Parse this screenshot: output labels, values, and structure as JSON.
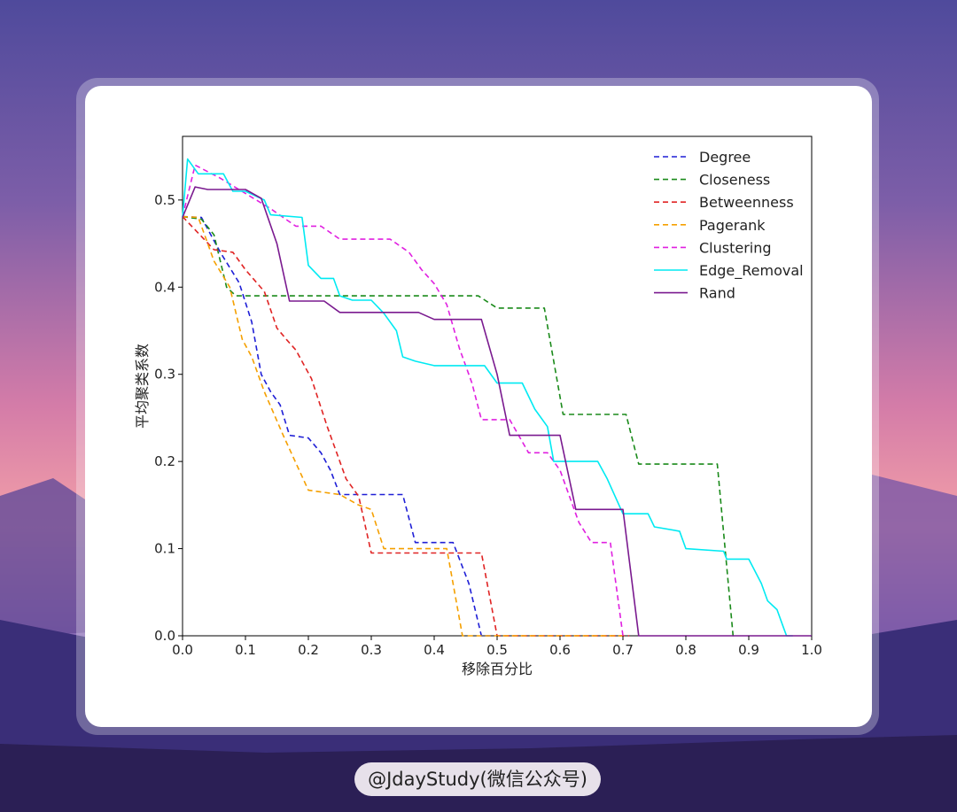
{
  "watermark": "@JdayStudy(微信公众号)",
  "chart_data": {
    "type": "line",
    "title": "",
    "xlabel": "移除百分比",
    "ylabel": "平均聚类系数",
    "xlim": [
      0.0,
      1.0
    ],
    "ylim": [
      0.0,
      0.573
    ],
    "xticks": [
      "0.0",
      "0.1",
      "0.2",
      "0.3",
      "0.4",
      "0.5",
      "0.6",
      "0.7",
      "0.8",
      "0.9",
      "1.0"
    ],
    "yticks": [
      "0.0",
      "0.1",
      "0.2",
      "0.3",
      "0.4",
      "0.5"
    ],
    "grid": false,
    "legend": "top-right",
    "series": [
      {
        "name": "Degree",
        "color": "#1f1fd6",
        "dash": "dashed",
        "points": [
          [
            0.0,
            0.481
          ],
          [
            0.03,
            0.48
          ],
          [
            0.06,
            0.44
          ],
          [
            0.09,
            0.405
          ],
          [
            0.11,
            0.36
          ],
          [
            0.125,
            0.3
          ],
          [
            0.14,
            0.28
          ],
          [
            0.155,
            0.265
          ],
          [
            0.17,
            0.23
          ],
          [
            0.2,
            0.227
          ],
          [
            0.22,
            0.21
          ],
          [
            0.235,
            0.19
          ],
          [
            0.25,
            0.162
          ],
          [
            0.35,
            0.162
          ],
          [
            0.37,
            0.107
          ],
          [
            0.43,
            0.107
          ],
          [
            0.455,
            0.06
          ],
          [
            0.475,
            0.0
          ],
          [
            0.49,
            0.0
          ]
        ]
      },
      {
        "name": "Closeness",
        "color": "#1a8a1a",
        "dash": "dashed",
        "points": [
          [
            0.0,
            0.481
          ],
          [
            0.03,
            0.478
          ],
          [
            0.05,
            0.46
          ],
          [
            0.07,
            0.4
          ],
          [
            0.085,
            0.39
          ],
          [
            0.47,
            0.39
          ],
          [
            0.5,
            0.376
          ],
          [
            0.575,
            0.376
          ],
          [
            0.605,
            0.254
          ],
          [
            0.705,
            0.254
          ],
          [
            0.725,
            0.197
          ],
          [
            0.85,
            0.197
          ],
          [
            0.875,
            0.0
          ],
          [
            0.88,
            0.0
          ]
        ]
      },
      {
        "name": "Betweenness",
        "color": "#e02424",
        "dash": "dashed",
        "points": [
          [
            0.0,
            0.481
          ],
          [
            0.05,
            0.443
          ],
          [
            0.08,
            0.44
          ],
          [
            0.1,
            0.42
          ],
          [
            0.13,
            0.395
          ],
          [
            0.15,
            0.353
          ],
          [
            0.165,
            0.34
          ],
          [
            0.18,
            0.328
          ],
          [
            0.205,
            0.295
          ],
          [
            0.23,
            0.24
          ],
          [
            0.26,
            0.18
          ],
          [
            0.28,
            0.16
          ],
          [
            0.3,
            0.095
          ],
          [
            0.475,
            0.095
          ],
          [
            0.5,
            0.0
          ],
          [
            0.71,
            0.0
          ]
        ]
      },
      {
        "name": "Pagerank",
        "color": "#f5a000",
        "dash": "dashed",
        "points": [
          [
            0.0,
            0.481
          ],
          [
            0.025,
            0.48
          ],
          [
            0.05,
            0.43
          ],
          [
            0.075,
            0.4
          ],
          [
            0.095,
            0.34
          ],
          [
            0.11,
            0.32
          ],
          [
            0.13,
            0.28
          ],
          [
            0.16,
            0.23
          ],
          [
            0.2,
            0.167
          ],
          [
            0.25,
            0.162
          ],
          [
            0.28,
            0.15
          ],
          [
            0.3,
            0.145
          ],
          [
            0.32,
            0.1
          ],
          [
            0.42,
            0.1
          ],
          [
            0.445,
            0.0
          ],
          [
            0.7,
            0.0
          ]
        ]
      },
      {
        "name": "Clustering",
        "color": "#e020e0",
        "dash": "dashed",
        "points": [
          [
            0.0,
            0.481
          ],
          [
            0.02,
            0.54
          ],
          [
            0.06,
            0.525
          ],
          [
            0.14,
            0.49
          ],
          [
            0.18,
            0.47
          ],
          [
            0.22,
            0.47
          ],
          [
            0.25,
            0.455
          ],
          [
            0.33,
            0.455
          ],
          [
            0.36,
            0.44
          ],
          [
            0.38,
            0.42
          ],
          [
            0.4,
            0.404
          ],
          [
            0.42,
            0.38
          ],
          [
            0.44,
            0.33
          ],
          [
            0.46,
            0.29
          ],
          [
            0.475,
            0.248
          ],
          [
            0.52,
            0.248
          ],
          [
            0.55,
            0.21
          ],
          [
            0.58,
            0.21
          ],
          [
            0.6,
            0.19
          ],
          [
            0.63,
            0.13
          ],
          [
            0.65,
            0.107
          ],
          [
            0.68,
            0.107
          ],
          [
            0.7,
            0.0
          ]
        ]
      },
      {
        "name": "Edge_Removal",
        "color": "#00eaf2",
        "dash": "solid",
        "points": [
          [
            0.0,
            0.48
          ],
          [
            0.008,
            0.547
          ],
          [
            0.025,
            0.53
          ],
          [
            0.065,
            0.53
          ],
          [
            0.08,
            0.51
          ],
          [
            0.1,
            0.51
          ],
          [
            0.13,
            0.5
          ],
          [
            0.14,
            0.483
          ],
          [
            0.19,
            0.48
          ],
          [
            0.2,
            0.425
          ],
          [
            0.22,
            0.41
          ],
          [
            0.24,
            0.41
          ],
          [
            0.25,
            0.39
          ],
          [
            0.27,
            0.385
          ],
          [
            0.3,
            0.385
          ],
          [
            0.32,
            0.37
          ],
          [
            0.34,
            0.35
          ],
          [
            0.35,
            0.32
          ],
          [
            0.37,
            0.315
          ],
          [
            0.4,
            0.31
          ],
          [
            0.48,
            0.31
          ],
          [
            0.5,
            0.29
          ],
          [
            0.54,
            0.29
          ],
          [
            0.56,
            0.26
          ],
          [
            0.58,
            0.24
          ],
          [
            0.59,
            0.2
          ],
          [
            0.66,
            0.2
          ],
          [
            0.675,
            0.18
          ],
          [
            0.7,
            0.14
          ],
          [
            0.74,
            0.14
          ],
          [
            0.75,
            0.125
          ],
          [
            0.79,
            0.12
          ],
          [
            0.8,
            0.1
          ],
          [
            0.86,
            0.097
          ],
          [
            0.865,
            0.088
          ],
          [
            0.9,
            0.088
          ],
          [
            0.92,
            0.06
          ],
          [
            0.93,
            0.04
          ],
          [
            0.945,
            0.03
          ],
          [
            0.955,
            0.01
          ],
          [
            0.96,
            0.0
          ],
          [
            0.97,
            0.0
          ]
        ]
      },
      {
        "name": "Rand",
        "color": "#7a1a8f",
        "dash": "solid",
        "points": [
          [
            0.0,
            0.48
          ],
          [
            0.02,
            0.515
          ],
          [
            0.04,
            0.512
          ],
          [
            0.1,
            0.512
          ],
          [
            0.125,
            0.502
          ],
          [
            0.15,
            0.45
          ],
          [
            0.17,
            0.384
          ],
          [
            0.225,
            0.384
          ],
          [
            0.25,
            0.371
          ],
          [
            0.375,
            0.371
          ],
          [
            0.4,
            0.363
          ],
          [
            0.475,
            0.363
          ],
          [
            0.5,
            0.3
          ],
          [
            0.52,
            0.23
          ],
          [
            0.6,
            0.23
          ],
          [
            0.625,
            0.145
          ],
          [
            0.7,
            0.145
          ],
          [
            0.725,
            0.0
          ],
          [
            1.0,
            0.0
          ]
        ]
      }
    ]
  }
}
